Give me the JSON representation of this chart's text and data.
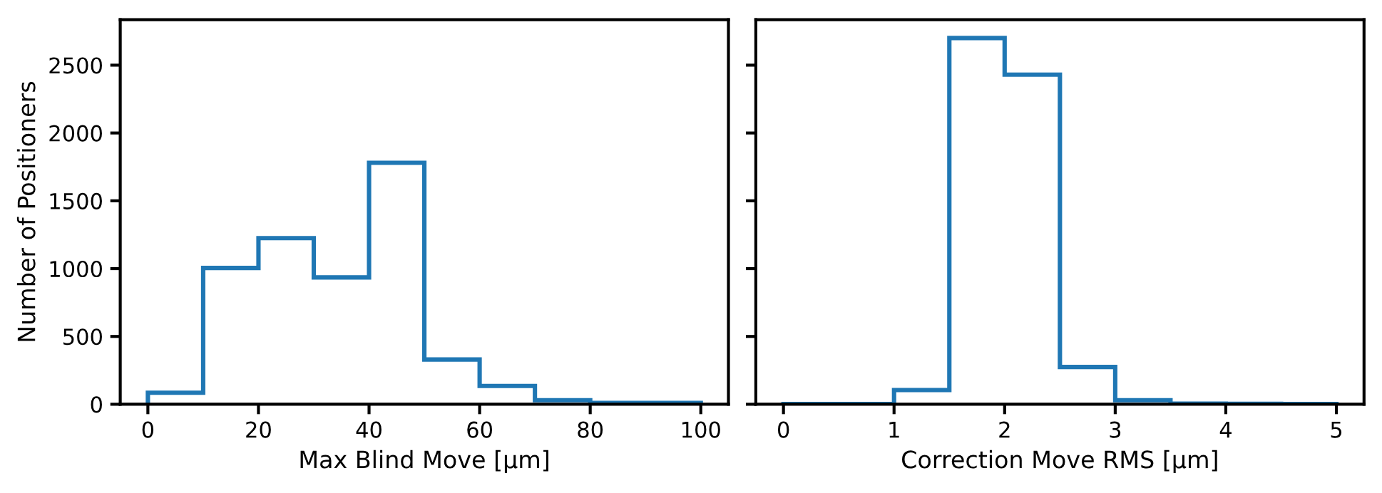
{
  "chart_data": [
    {
      "type": "histogram",
      "xlabel": "Max Blind Move [μm]",
      "ylabel": "Number of Positioners",
      "bins": [
        0,
        10,
        20,
        30,
        40,
        50,
        60,
        70,
        80,
        90,
        100
      ],
      "values": [
        85,
        1005,
        1225,
        935,
        1780,
        330,
        135,
        30,
        10,
        10
      ],
      "color": "#1f77b4",
      "xlim": [
        -5,
        105
      ],
      "xticks": [
        0,
        20,
        40,
        60,
        80,
        100
      ],
      "ylim": [
        0,
        2835
      ],
      "yticks": [
        0,
        500,
        1000,
        1500,
        2000,
        2500
      ],
      "grid": false
    },
    {
      "type": "histogram",
      "xlabel": "Correction Move RMS [μm]",
      "bins": [
        0,
        0.5,
        1,
        1.5,
        2,
        2.5,
        3,
        3.5,
        4,
        4.5,
        5
      ],
      "values": [
        2,
        2,
        105,
        2700,
        2430,
        275,
        30,
        5,
        3,
        2
      ],
      "color": "#1f77b4",
      "xlim": [
        -0.25,
        5.25
      ],
      "xticks": [
        0,
        1,
        2,
        3,
        4,
        5
      ],
      "ylim": [
        0,
        2835
      ],
      "yticks": [
        0,
        500,
        1000,
        1500,
        2000,
        2500
      ],
      "grid": false,
      "tick_labels": "x"
    }
  ]
}
